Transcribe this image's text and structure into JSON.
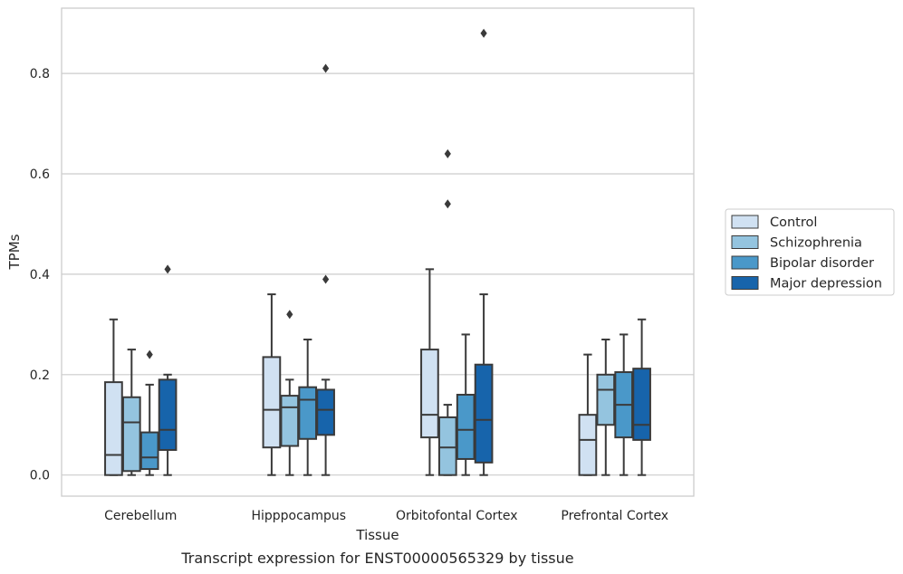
{
  "chart_data": {
    "type": "boxplot",
    "caption": "Transcript expression for ENST00000565329 by tissue",
    "xlabel": "Tissue",
    "ylabel": "TPMs",
    "ylim": [
      -0.042,
      0.93
    ],
    "yticks": [
      0.0,
      0.2,
      0.4,
      0.6,
      0.8
    ],
    "ytick_labels": [
      "0.0",
      "0.2",
      "0.4",
      "0.6",
      "0.8"
    ],
    "grid": "horizontal",
    "legend_position": "right",
    "categories": [
      "Cerebellum",
      "Hipppocampus",
      "Orbitofontal Cortex",
      "Prefrontal Cortex"
    ],
    "series": [
      {
        "name": "Control",
        "color": "#d0e1f2",
        "boxes": [
          {
            "whisker_low": 0.0,
            "q1": 0.0,
            "median": 0.04,
            "q3": 0.185,
            "whisker_high": 0.31,
            "outliers": []
          },
          {
            "whisker_low": 0.0,
            "q1": 0.055,
            "median": 0.13,
            "q3": 0.235,
            "whisker_high": 0.36,
            "outliers": []
          },
          {
            "whisker_low": 0.0,
            "q1": 0.075,
            "median": 0.12,
            "q3": 0.25,
            "whisker_high": 0.41,
            "outliers": []
          },
          {
            "whisker_low": 0.0,
            "q1": 0.0,
            "median": 0.07,
            "q3": 0.12,
            "whisker_high": 0.24,
            "outliers": []
          }
        ]
      },
      {
        "name": "Schizophrenia",
        "color": "#94c4df",
        "boxes": [
          {
            "whisker_low": 0.0,
            "q1": 0.008,
            "median": 0.105,
            "q3": 0.155,
            "whisker_high": 0.25,
            "outliers": []
          },
          {
            "whisker_low": 0.0,
            "q1": 0.058,
            "median": 0.135,
            "q3": 0.158,
            "whisker_high": 0.19,
            "outliers": [
              0.32
            ]
          },
          {
            "whisker_low": 0.0,
            "q1": 0.0,
            "median": 0.055,
            "q3": 0.115,
            "whisker_high": 0.14,
            "outliers": [
              0.64,
              0.54
            ]
          },
          {
            "whisker_low": 0.0,
            "q1": 0.1,
            "median": 0.17,
            "q3": 0.2,
            "whisker_high": 0.27,
            "outliers": []
          }
        ]
      },
      {
        "name": "Bipolar disorder",
        "color": "#4a98c9",
        "boxes": [
          {
            "whisker_low": 0.0,
            "q1": 0.012,
            "median": 0.035,
            "q3": 0.085,
            "whisker_high": 0.18,
            "outliers": [
              0.24
            ]
          },
          {
            "whisker_low": 0.0,
            "q1": 0.072,
            "median": 0.15,
            "q3": 0.175,
            "whisker_high": 0.27,
            "outliers": []
          },
          {
            "whisker_low": 0.0,
            "q1": 0.032,
            "median": 0.09,
            "q3": 0.16,
            "whisker_high": 0.28,
            "outliers": []
          },
          {
            "whisker_low": 0.0,
            "q1": 0.075,
            "median": 0.14,
            "q3": 0.205,
            "whisker_high": 0.28,
            "outliers": []
          }
        ]
      },
      {
        "name": "Major depression",
        "color": "#1764ab",
        "boxes": [
          {
            "whisker_low": 0.0,
            "q1": 0.05,
            "median": 0.09,
            "q3": 0.19,
            "whisker_high": 0.2,
            "outliers": [
              0.41
            ]
          },
          {
            "whisker_low": 0.0,
            "q1": 0.08,
            "median": 0.13,
            "q3": 0.17,
            "whisker_high": 0.19,
            "outliers": [
              0.81,
              0.39
            ]
          },
          {
            "whisker_low": 0.0,
            "q1": 0.025,
            "median": 0.11,
            "q3": 0.22,
            "whisker_high": 0.36,
            "outliers": [
              0.88
            ]
          },
          {
            "whisker_low": 0.0,
            "q1": 0.07,
            "median": 0.1,
            "q3": 0.212,
            "whisker_high": 0.31,
            "outliers": []
          }
        ]
      }
    ]
  }
}
